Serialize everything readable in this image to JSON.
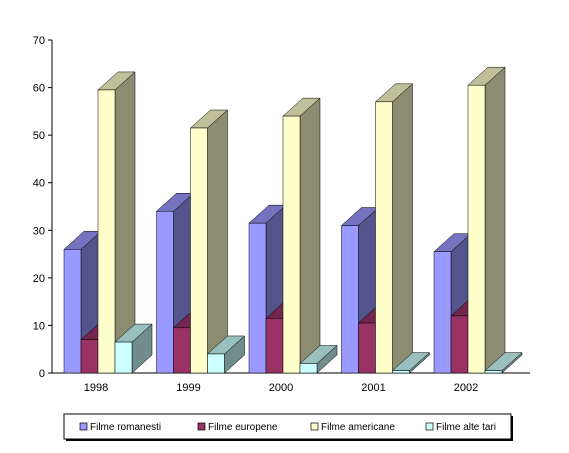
{
  "chart_data": {
    "type": "bar",
    "categories": [
      "1998",
      "1999",
      "2000",
      "2001",
      "2002"
    ],
    "series": [
      {
        "name": "Filme romanesti",
        "values": [
          26,
          34,
          31.5,
          31,
          25.5
        ],
        "color": "#9999ff"
      },
      {
        "name": "Filme europene",
        "values": [
          7,
          9.5,
          11.5,
          10.5,
          12
        ],
        "color": "#993366"
      },
      {
        "name": "Filme americane",
        "values": [
          59.5,
          51.5,
          54,
          57,
          60.5
        ],
        "color": "#ffffcc"
      },
      {
        "name": "Filme alte tari",
        "values": [
          6.5,
          4,
          2,
          0.5,
          0.5
        ],
        "color": "#ccffff"
      }
    ],
    "yticks": [
      0,
      10,
      20,
      30,
      40,
      50,
      60,
      70
    ],
    "ylim": [
      0,
      70
    ],
    "legend_position": "bottom",
    "grid": false
  }
}
